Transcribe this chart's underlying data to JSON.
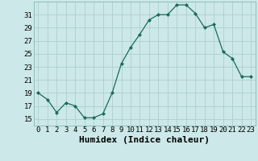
{
  "x": [
    0,
    1,
    2,
    3,
    4,
    5,
    6,
    7,
    8,
    9,
    10,
    11,
    12,
    13,
    14,
    15,
    16,
    17,
    18,
    19,
    20,
    21,
    22,
    23
  ],
  "y": [
    19,
    18,
    16,
    17.5,
    17,
    15.2,
    15.2,
    15.8,
    19,
    23.5,
    26,
    28,
    30.2,
    31,
    31,
    32.5,
    32.5,
    31.2,
    29,
    29.5,
    25.3,
    24.3,
    21.5,
    21.5
  ],
  "line_color": "#1a6b5a",
  "marker_color": "#1a6b5a",
  "bg_color": "#cce8e8",
  "grid_color": "#aed0d0",
  "xlabel": "Humidex (Indice chaleur)",
  "xlim": [
    -0.5,
    23.5
  ],
  "ylim": [
    14,
    33
  ],
  "yticks": [
    15,
    17,
    19,
    21,
    23,
    25,
    27,
    29,
    31
  ],
  "xticks": [
    0,
    1,
    2,
    3,
    4,
    5,
    6,
    7,
    8,
    9,
    10,
    11,
    12,
    13,
    14,
    15,
    16,
    17,
    18,
    19,
    20,
    21,
    22,
    23
  ],
  "tick_label_fontsize": 6.5,
  "xlabel_fontsize": 8
}
